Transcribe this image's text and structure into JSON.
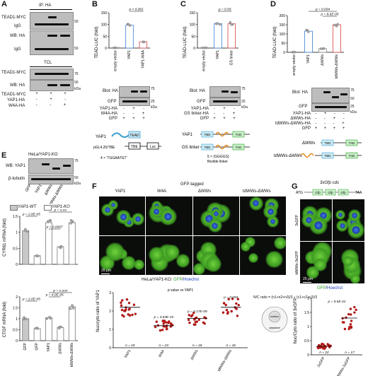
{
  "panels": {
    "A": {
      "label": "A",
      "ip_title": "IP: HA",
      "blot1": "TEAD1-MYC",
      "blot2": "WB: HA",
      "igg": "IgG",
      "tcl_title": "TCL",
      "blot3": "TEAD1-MYC",
      "blot4": "WB: HA",
      "mw": [
        "50",
        "50",
        "75",
        "50",
        "75"
      ],
      "kda": "kDa",
      "rows": [
        "TEAD1-MYC",
        "YAP1-HA",
        "W4A-HA"
      ],
      "signs": [
        [
          "+",
          "+",
          "+"
        ],
        [
          "-",
          "+",
          "-"
        ],
        [
          "-",
          "-",
          "+"
        ]
      ]
    },
    "B": {
      "label": "B",
      "ylabel": "TEAD-LUC (fold)",
      "p": "p < 0.001",
      "categories": [
        "empty vector",
        "YAP1",
        "YAP1-W4A"
      ],
      "blot": "Blot: HA",
      "gfp": "GFP",
      "mw": [
        "75",
        "25"
      ],
      "kda": "kDa",
      "rows": [
        "YAP1-HA",
        "W4A-HA",
        "GFP"
      ],
      "signs": [
        [
          "-",
          "+",
          "-"
        ],
        [
          "-",
          "-",
          "+"
        ],
        [
          "+",
          "+",
          "+"
        ]
      ],
      "construct_yap": "YAP1",
      "construct_tead": "TEAD",
      "construct_tbe": "TBE",
      "construct_luc": "Luc",
      "plasmid": "pGL4.20/TBE",
      "motif": "4 × 'TGGAATGT'"
    },
    "C": {
      "label": "C",
      "ylabel": "TEAD-LUC (fold)",
      "p": "p = 0.59",
      "categories": [
        "empty vector",
        "YAP1",
        "GS linker"
      ],
      "blot": "Blot: HA",
      "gfp": "GFP",
      "mw": [
        "75",
        "25"
      ],
      "kda": "kDa",
      "rows": [
        "YAP1-HA",
        "GS linker-HA",
        "GFP"
      ],
      "signs": [
        [
          "-",
          "+",
          "-"
        ],
        [
          "-",
          "-",
          "+"
        ],
        [
          "+",
          "+",
          "+"
        ]
      ],
      "yap": "YAP1",
      "gs": "GS linker",
      "tbd": "TBD",
      "tad": "TAD",
      "linker_note1": "5 × (GGGGS)",
      "linker_note2": "flexible linker"
    },
    "D": {
      "label": "D",
      "ylabel": "TEAD-LUC (fold)",
      "p1": "p = 0.004",
      "p2": "p = 8.6E-05",
      "categories": [
        "empty vector",
        "YAP1",
        "ΔWWs",
        "tdWWs-ΔWWs"
      ],
      "blot": "Blot: HA",
      "gfp": "GFP",
      "mw": [
        "75",
        "50",
        "25"
      ],
      "kda": "kDa",
      "rows": [
        "YAP1-HA",
        "ΔWWs-HA",
        "tdWWs-ΔWWs-HA",
        "GFP"
      ],
      "signs": [
        [
          "-",
          "+",
          "-",
          "-"
        ],
        [
          "-",
          "-",
          "+",
          "-"
        ],
        [
          "-",
          "-",
          "-",
          "+"
        ],
        [
          "+",
          "+",
          "+",
          "+"
        ]
      ],
      "dww": "ΔWWs",
      "tdww": "tdWWs-ΔWWs",
      "tbd": "TBD",
      "tad": "TAD"
    },
    "E": {
      "label": "E",
      "cell_line": "HeLa/YAP1-KO",
      "blot1": "WB: YAP1",
      "blot2": "β-tubulin",
      "mw": [
        "75",
        "50"
      ],
      "kda": "kDa",
      "lanes": [
        "GFP",
        "YAP1",
        "ΔWWs",
        "tdWWs-ΔWWs"
      ],
      "legend_wt": "YAP1-WT",
      "legend_ko": "YAP1-KO",
      "cyr61_ylabel": "CYR61 mRNA (fold)",
      "ctgf_ylabel": "CTGF mRNA (fold)",
      "cyr_p": [
        "p = 2.8E-05",
        "p = 0.95",
        "p = 0.0007"
      ],
      "ctgf_p": [
        "p = 2.0E-05",
        "p = 0.009",
        "p = 4.0E-05"
      ],
      "categories": [
        "GFP",
        "GFP",
        "YAP1",
        "ΔWWs",
        "tdWWs-ΔWWs"
      ]
    },
    "F": {
      "label": "F",
      "title": "GFP-tagged",
      "cols": [
        "YAP1",
        "W4A",
        "ΔWWs",
        "tdWWs-ΔWWs"
      ],
      "scale": "25 μm",
      "caption_a": "HeLa/",
      "caption_b": "YAP1",
      "caption_c": "-KO: ",
      "caption_d": "GFP",
      "caption_e": "/",
      "caption_f": "Hoechst",
      "ylabel": "Nuc/cyto ratio of YAP1",
      "p_title": "p value  vs YAP1",
      "p": [
        "p = 4.63E-15",
        "p = 5.17E-09",
        "p = 0.694"
      ],
      "n": [
        "n = 19",
        "n = 23",
        "n = 18",
        "n = 16"
      ],
      "formula": "N/C ratio = (n1+n2+n3)/3 ÷ (c1+c2+c3)/3",
      "nucleus": "nucleus",
      "cytoplasm": "cytoplasm"
    },
    "G": {
      "label": "G",
      "title": "3xGfp cds",
      "atg": "ATG",
      "taa": "TAA",
      "gfp": "Gfp",
      "row1": "3xGFP",
      "row2": "tdWWs-3xGFP",
      "scale": "25 μm",
      "caption_gfp": "GFP",
      "caption_slash": "/",
      "caption_hoechst": "Hoechst",
      "ylabel": "Nuc/Cyto ratio of 3xGFP",
      "p": "p = 9.6E-22",
      "n": [
        "n = 22",
        "n = 17"
      ],
      "categories": [
        "3xGFP",
        "tdWWs-3xGFP"
      ]
    }
  },
  "chart_data": [
    {
      "type": "bar",
      "panel": "B",
      "categories": [
        "empty vector",
        "YAP1",
        "YAP1-W4A"
      ],
      "values": [
        1,
        97,
        27
      ],
      "ylabel": "TEAD-LUC (fold)",
      "ylim": [
        0,
        150
      ],
      "yticks": [
        0,
        50,
        100,
        150
      ]
    },
    {
      "type": "bar",
      "panel": "C",
      "categories": [
        "empty vector",
        "YAP1",
        "GS linker"
      ],
      "values": [
        1,
        104,
        103
      ],
      "ylabel": "TEAD-LUC (fold)",
      "ylim": [
        0,
        150
      ],
      "yticks": [
        0,
        50,
        100,
        150
      ]
    },
    {
      "type": "bar",
      "panel": "D",
      "categories": [
        "empty vector",
        "YAP1",
        "ΔWWs",
        "tdWWs-ΔWWs"
      ],
      "values": [
        1,
        115,
        20,
        150
      ],
      "ylabel": "TEAD-LUC (fold)",
      "ylim": [
        0,
        200
      ],
      "yticks": [
        0,
        50,
        100,
        150,
        200
      ]
    },
    {
      "type": "bar",
      "panel": "E-CYR61",
      "categories": [
        "GFP",
        "GFP",
        "YAP1",
        "ΔWWs",
        "tdWWs-ΔWWs"
      ],
      "series": [
        {
          "name": "YAP1-WT",
          "values": [
            1.05,
            null,
            null,
            null,
            null
          ]
        },
        {
          "name": "YAP1-KO",
          "values": [
            null,
            0.27,
            1.3,
            0.55,
            1.3
          ]
        }
      ],
      "ylabel": "CYR61 mRNA (fold)",
      "ylim": [
        0,
        1.5
      ],
      "yticks": [
        0,
        0.5,
        1.0,
        1.5
      ]
    },
    {
      "type": "bar",
      "panel": "E-CTGF",
      "categories": [
        "GFP",
        "GFP",
        "YAP1",
        "ΔWWs",
        "tdWWs-ΔWWs"
      ],
      "series": [
        {
          "name": "YAP1-WT",
          "values": [
            1.0,
            null,
            null,
            null,
            null
          ]
        },
        {
          "name": "YAP1-KO",
          "values": [
            null,
            0.55,
            1.05,
            0.6,
            1.55
          ]
        }
      ],
      "ylabel": "CTGF mRNA (fold)",
      "ylim": [
        0,
        2.0
      ],
      "yticks": [
        0,
        0.5,
        1.0,
        1.5,
        2.0
      ]
    },
    {
      "type": "scatter",
      "panel": "F",
      "categories": [
        "YAP1",
        "W4A",
        "ΔWWs",
        "tdWWs-ΔWWs"
      ],
      "means": [
        2.2,
        1.2,
        1.6,
        2.2
      ],
      "ylabel": "Nuc/cyto ratio of YAP1",
      "ylim": [
        0,
        3
      ],
      "yticks": [
        0,
        1,
        2,
        3
      ]
    },
    {
      "type": "scatter",
      "panel": "G",
      "categories": [
        "3xGFP",
        "tdWWs-3xGFP"
      ],
      "means": [
        0.3,
        1.3
      ],
      "ylabel": "Nuc/Cyto ratio of 3xGFP",
      "ylim": [
        0,
        2
      ],
      "yticks": [
        0,
        0.5,
        1.0,
        1.5,
        2.0
      ]
    }
  ]
}
